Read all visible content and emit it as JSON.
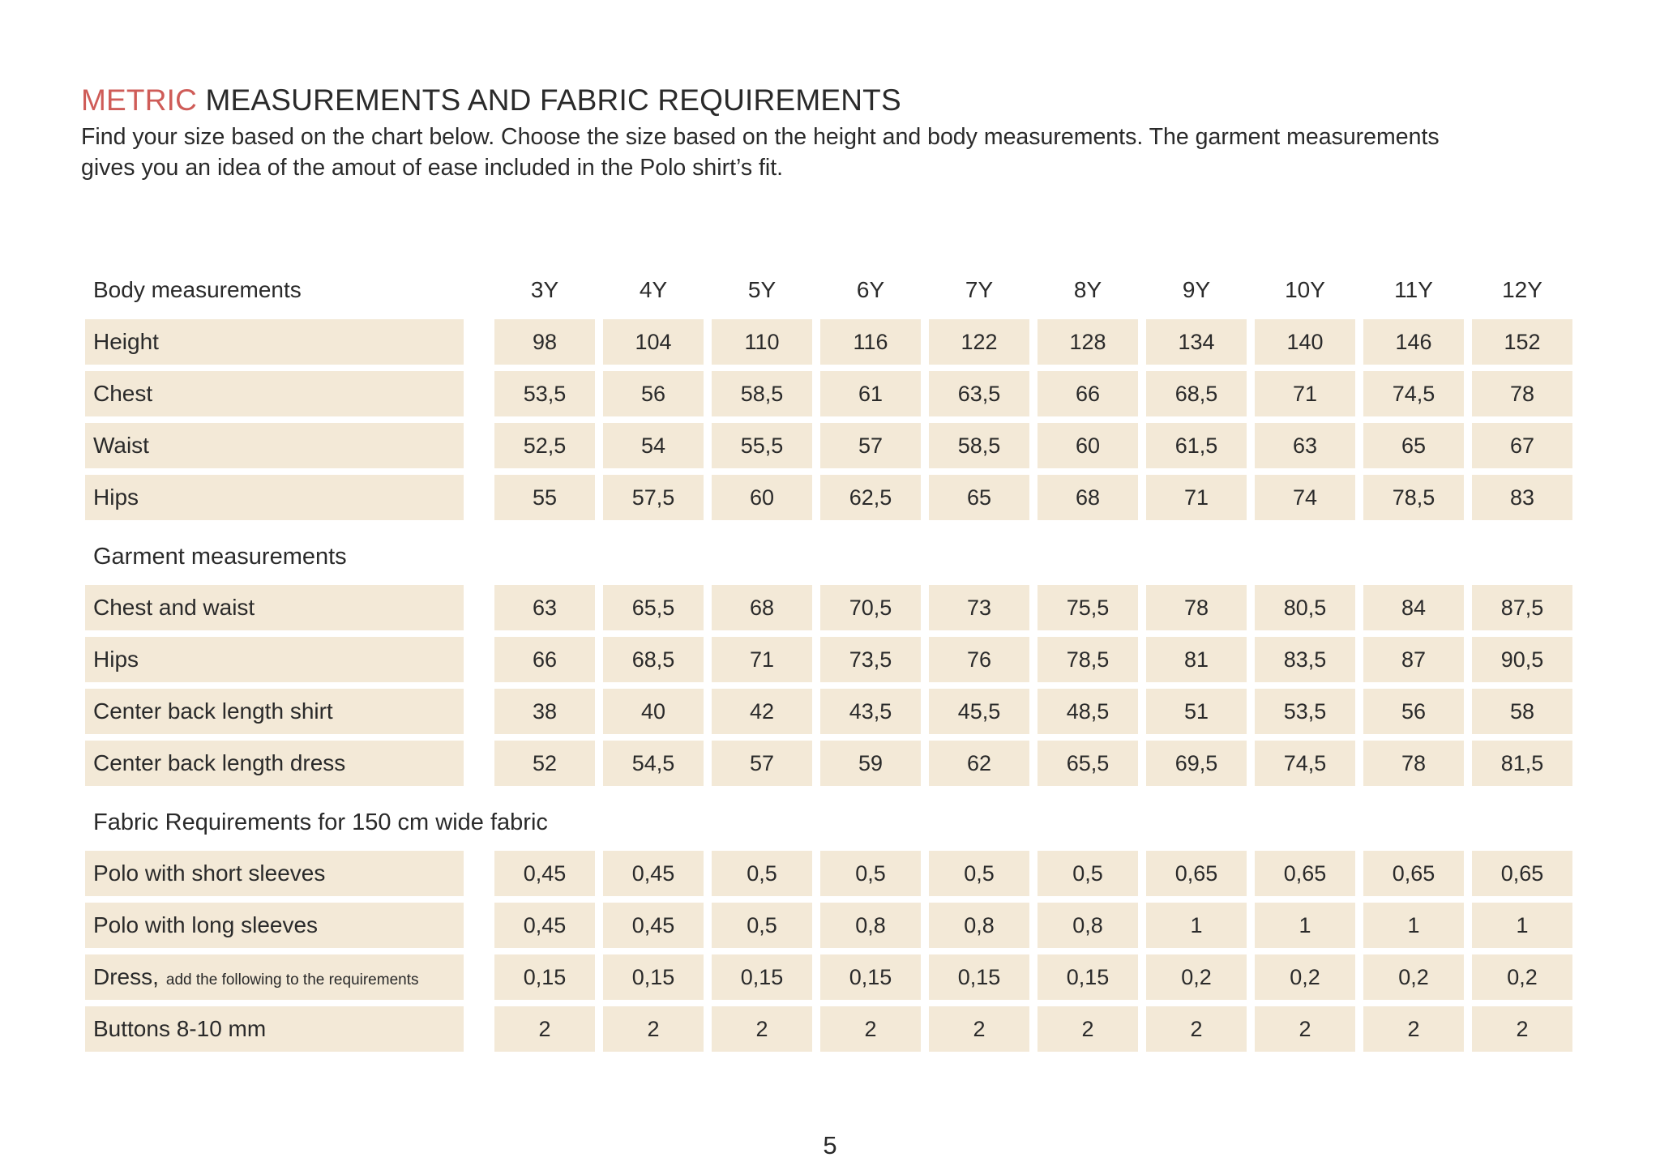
{
  "title": {
    "highlight": "METRIC",
    "rest": " MEASUREMENTS AND FABRIC REQUIREMENTS"
  },
  "subtitle_lines": [
    "Find your size based on the chart below. Choose the size based on the height and body measurements. The garment measurements",
    "gives you an idea of the amout of ease included in the Polo shirt’s fit."
  ],
  "page_number": "5",
  "colors": {
    "accent": "#cf5c58",
    "cell_background": "#f3e9d7",
    "text": "#2a2a2a"
  },
  "table": {
    "sizes": [
      "3Y",
      "4Y",
      "5Y",
      "6Y",
      "7Y",
      "8Y",
      "9Y",
      "10Y",
      "11Y",
      "12Y"
    ],
    "rows": [
      {
        "type": "sizes-header",
        "label": "Body measurements"
      },
      {
        "type": "data",
        "label": "Height",
        "values": [
          "98",
          "104",
          "110",
          "116",
          "122",
          "128",
          "134",
          "140",
          "146",
          "152"
        ]
      },
      {
        "type": "data",
        "label": "Chest",
        "values": [
          "53,5",
          "56",
          "58,5",
          "61",
          "63,5",
          "66",
          "68,5",
          "71",
          "74,5",
          "78"
        ]
      },
      {
        "type": "data",
        "label": "Waist",
        "values": [
          "52,5",
          "54",
          "55,5",
          "57",
          "58,5",
          "60",
          "61,5",
          "63",
          "65",
          "67"
        ]
      },
      {
        "type": "data",
        "label": "Hips",
        "values": [
          "55",
          "57,5",
          "60",
          "62,5",
          "65",
          "68",
          "71",
          "74",
          "78,5",
          "83"
        ]
      },
      {
        "type": "section",
        "label": "Garment measurements"
      },
      {
        "type": "data",
        "label": "Chest and waist",
        "values": [
          "63",
          "65,5",
          "68",
          "70,5",
          "73",
          "75,5",
          "78",
          "80,5",
          "84",
          "87,5"
        ]
      },
      {
        "type": "data",
        "label": "Hips",
        "values": [
          "66",
          "68,5",
          "71",
          "73,5",
          "76",
          "78,5",
          "81",
          "83,5",
          "87",
          "90,5"
        ]
      },
      {
        "type": "data",
        "label": "Center back length shirt",
        "values": [
          "38",
          "40",
          "42",
          "43,5",
          "45,5",
          "48,5",
          "51",
          "53,5",
          "56",
          "58"
        ]
      },
      {
        "type": "data",
        "label": "Center back length dress",
        "values": [
          "52",
          "54,5",
          "57",
          "59",
          "62",
          "65,5",
          "69,5",
          "74,5",
          "78",
          "81,5"
        ]
      },
      {
        "type": "section",
        "label": "Fabric Requirements for 150 cm wide fabric"
      },
      {
        "type": "data",
        "label": "Polo with short sleeves",
        "values": [
          "0,45",
          "0,45",
          "0,5",
          "0,5",
          "0,5",
          "0,5",
          "0,65",
          "0,65",
          "0,65",
          "0,65"
        ]
      },
      {
        "type": "data",
        "label": "Polo with long sleeves",
        "values": [
          "0,45",
          "0,45",
          "0,5",
          "0,8",
          "0,8",
          "0,8",
          "1",
          "1",
          "1",
          "1"
        ]
      },
      {
        "type": "data",
        "label": "Dress,",
        "label_note": "add the following to the requirements",
        "values": [
          "0,15",
          "0,15",
          "0,15",
          "0,15",
          "0,15",
          "0,15",
          "0,2",
          "0,2",
          "0,2",
          "0,2"
        ]
      },
      {
        "type": "data",
        "label": "Buttons 8-10 mm",
        "values": [
          "2",
          "2",
          "2",
          "2",
          "2",
          "2",
          "2",
          "2",
          "2",
          "2"
        ]
      }
    ]
  }
}
